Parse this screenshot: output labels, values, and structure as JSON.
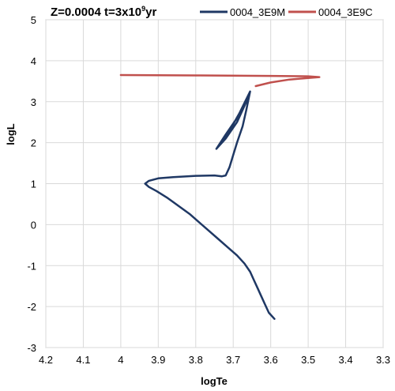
{
  "chart_data": {
    "type": "line",
    "title": "Z=0.0004 t=3x10",
    "title_superscript": "9",
    "title_suffix": "yr",
    "xlabel": "logTe",
    "ylabel": "logL",
    "xlim": [
      4.2,
      3.3
    ],
    "ylim": [
      -3,
      5
    ],
    "x_reversed": true,
    "grid": true,
    "legend_position": "top",
    "x_ticks": [
      "4.2",
      "4.1",
      "4",
      "3.9",
      "3.8",
      "3.7",
      "3.6",
      "3.5",
      "3.4",
      "3.3"
    ],
    "y_ticks": [
      "5",
      "4",
      "3",
      "2",
      "1",
      "0",
      "-1",
      "-2",
      "-3"
    ],
    "series": [
      {
        "name": "0004_3E9M",
        "color": "#1f3864",
        "points": [
          [
            3.59,
            -2.3
          ],
          [
            3.605,
            -2.15
          ],
          [
            3.615,
            -1.95
          ],
          [
            3.625,
            -1.75
          ],
          [
            3.635,
            -1.55
          ],
          [
            3.645,
            -1.35
          ],
          [
            3.655,
            -1.15
          ],
          [
            3.67,
            -0.95
          ],
          [
            3.69,
            -0.75
          ],
          [
            3.715,
            -0.55
          ],
          [
            3.74,
            -0.35
          ],
          [
            3.765,
            -0.15
          ],
          [
            3.79,
            0.05
          ],
          [
            3.815,
            0.25
          ],
          [
            3.845,
            0.45
          ],
          [
            3.875,
            0.65
          ],
          [
            3.905,
            0.82
          ],
          [
            3.925,
            0.92
          ],
          [
            3.935,
            1.0
          ],
          [
            3.925,
            1.07
          ],
          [
            3.9,
            1.13
          ],
          [
            3.86,
            1.16
          ],
          [
            3.8,
            1.19
          ],
          [
            3.75,
            1.2
          ],
          [
            3.73,
            1.18
          ],
          [
            3.72,
            1.2
          ],
          [
            3.71,
            1.4
          ],
          [
            3.7,
            1.7
          ],
          [
            3.69,
            2.0
          ],
          [
            3.675,
            2.4
          ],
          [
            3.665,
            2.8
          ],
          [
            3.655,
            3.25
          ],
          [
            3.69,
            2.6
          ],
          [
            3.72,
            2.2
          ],
          [
            3.745,
            1.85
          ],
          [
            3.72,
            2.1
          ],
          [
            3.69,
            2.5
          ],
          [
            3.66,
            3.1
          ],
          [
            3.7,
            2.45
          ],
          [
            3.74,
            1.9
          ]
        ]
      },
      {
        "name": "0004_3E9C",
        "color": "#c0504d",
        "points": [
          [
            3.64,
            3.38
          ],
          [
            3.6,
            3.47
          ],
          [
            3.55,
            3.54
          ],
          [
            3.5,
            3.58
          ],
          [
            3.47,
            3.6
          ],
          [
            3.5,
            3.62
          ],
          [
            3.6,
            3.63
          ],
          [
            3.8,
            3.64
          ],
          [
            4.0,
            3.65
          ]
        ]
      }
    ]
  }
}
